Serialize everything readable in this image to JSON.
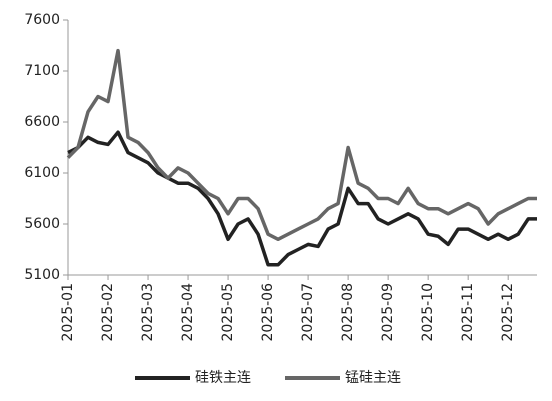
{
  "chart_data": {
    "type": "line",
    "x": [
      0,
      0.25,
      0.5,
      0.75,
      1,
      1.25,
      1.5,
      1.75,
      2,
      2.25,
      2.5,
      2.75,
      3,
      3.25,
      3.5,
      3.75,
      4,
      4.25,
      4.5,
      4.75,
      5,
      5.25,
      5.5,
      5.75,
      6,
      6.25,
      6.5,
      6.75,
      7,
      7.25,
      7.5,
      7.75,
      8,
      8.25,
      8.5,
      8.75,
      9,
      9.25,
      9.5,
      9.75,
      10,
      10.25,
      10.5,
      10.75,
      11,
      11.25,
      11.5,
      11.72
    ],
    "series": [
      {
        "name": "硅铁主连",
        "color": "#222222",
        "values": [
          6300,
          6350,
          6450,
          6400,
          6380,
          6500,
          6300,
          6250,
          6200,
          6100,
          6050,
          6000,
          6000,
          5950,
          5850,
          5700,
          5450,
          5600,
          5650,
          5500,
          5200,
          5200,
          5300,
          5350,
          5400,
          5380,
          5550,
          5600,
          5950,
          5800,
          5800,
          5650,
          5600,
          5650,
          5700,
          5650,
          5500,
          5480,
          5400,
          5550,
          5550,
          5500,
          5450,
          5500,
          5450,
          5500,
          5650,
          5650
        ]
      },
      {
        "name": "锰硅主连",
        "color": "#666666",
        "values": [
          6250,
          6350,
          6700,
          6850,
          6800,
          7300,
          6450,
          6400,
          6300,
          6150,
          6050,
          6150,
          6100,
          6000,
          5900,
          5850,
          5700,
          5850,
          5850,
          5750,
          5500,
          5450,
          5500,
          5550,
          5600,
          5650,
          5750,
          5800,
          6350,
          6000,
          5950,
          5850,
          5850,
          5800,
          5950,
          5800,
          5750,
          5750,
          5700,
          5750,
          5800,
          5750,
          5600,
          5700,
          5750,
          5800,
          5850,
          5850
        ]
      }
    ],
    "xlim": [
      0,
      11.72
    ],
    "xticks": [
      {
        "value": 0,
        "label": "2025-01"
      },
      {
        "value": 1,
        "label": "2025-02"
      },
      {
        "value": 2,
        "label": "2025-03"
      },
      {
        "value": 3,
        "label": "2025-04"
      },
      {
        "value": 4,
        "label": "2025-05"
      },
      {
        "value": 5,
        "label": "2025-06"
      },
      {
        "value": 6,
        "label": "2025-07"
      },
      {
        "value": 7,
        "label": "2025-08"
      },
      {
        "value": 8,
        "label": "2025-09"
      },
      {
        "value": 9,
        "label": "2025-10"
      },
      {
        "value": 10,
        "label": "2025-11"
      },
      {
        "value": 11,
        "label": "2025-12"
      }
    ],
    "ylim": [
      5100,
      7600
    ],
    "yticks": [
      5100,
      5600,
      6100,
      6600,
      7100,
      7600
    ],
    "legend": "bottom"
  }
}
